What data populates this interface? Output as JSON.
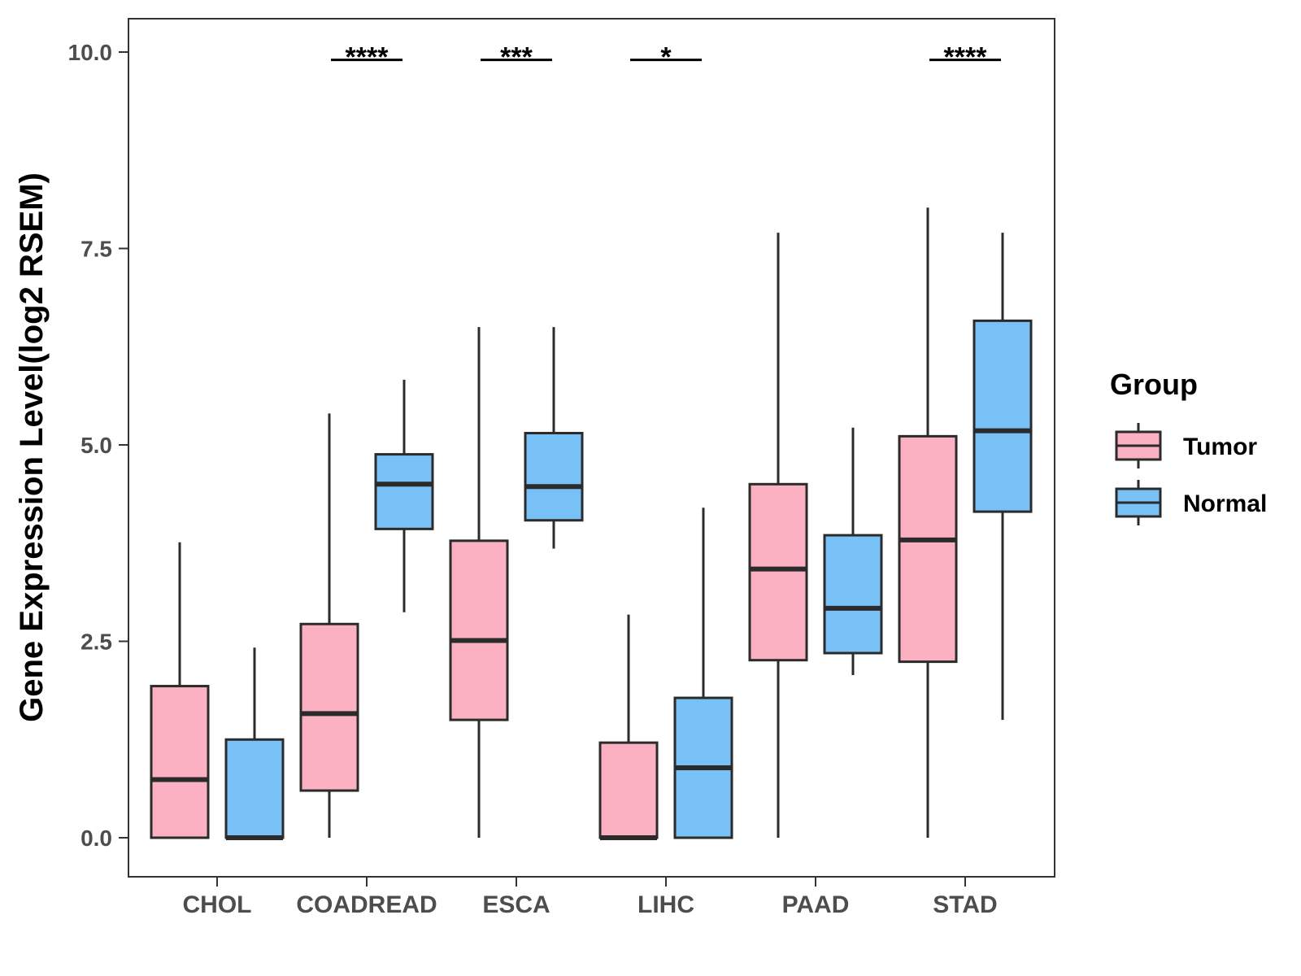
{
  "chart_data": {
    "type": "boxplot",
    "ylabel": "Gene Expression Level(log2 RSEM)",
    "xlabel": "",
    "ylim": [
      -0.5,
      10.4
    ],
    "y_ticks": [
      0.0,
      2.5,
      5.0,
      7.5,
      10.0
    ],
    "y_tick_labels": [
      "0.0",
      "2.5",
      "5.0",
      "7.5",
      "10.0"
    ],
    "grid": false,
    "categories": [
      "CHOL",
      "COADREAD",
      "ESCA",
      "LIHC",
      "PAAD",
      "STAD"
    ],
    "legend": {
      "title": "Group",
      "position": "right",
      "entries": [
        {
          "name": "Tumor",
          "color": "#FBB1C2"
        },
        {
          "name": "Normal",
          "color": "#77C1F7"
        }
      ]
    },
    "series": [
      {
        "name": "Tumor",
        "color": "#FBB1C2",
        "boxes": [
          {
            "category": "CHOL",
            "min": 0.0,
            "q1": 0.0,
            "median": 0.74,
            "q3": 1.93,
            "max": 3.76
          },
          {
            "category": "COADREAD",
            "min": 0.0,
            "q1": 0.6,
            "median": 1.58,
            "q3": 2.72,
            "max": 5.4
          },
          {
            "category": "ESCA",
            "min": 0.0,
            "q1": 1.5,
            "median": 2.51,
            "q3": 3.78,
            "max": 6.5
          },
          {
            "category": "LIHC",
            "min": 0.0,
            "q1": 0.0,
            "median": 0.0,
            "q3": 1.21,
            "max": 2.84
          },
          {
            "category": "PAAD",
            "min": 0.0,
            "q1": 2.26,
            "median": 3.42,
            "q3": 4.5,
            "max": 7.7
          },
          {
            "category": "STAD",
            "min": 0.0,
            "q1": 2.24,
            "median": 3.79,
            "q3": 5.11,
            "max": 8.02
          }
        ]
      },
      {
        "name": "Normal",
        "color": "#77C1F7",
        "boxes": [
          {
            "category": "CHOL",
            "min": 0.0,
            "q1": 0.0,
            "median": 0.0,
            "q3": 1.25,
            "max": 2.42
          },
          {
            "category": "COADREAD",
            "min": 2.87,
            "q1": 3.93,
            "median": 4.5,
            "q3": 4.88,
            "max": 5.83
          },
          {
            "category": "ESCA",
            "min": 3.68,
            "q1": 4.04,
            "median": 4.47,
            "q3": 5.15,
            "max": 6.5
          },
          {
            "category": "LIHC",
            "min": 0.0,
            "q1": 0.0,
            "median": 0.89,
            "q3": 1.78,
            "max": 4.2
          },
          {
            "category": "PAAD",
            "min": 2.07,
            "q1": 2.35,
            "median": 2.92,
            "q3": 3.85,
            "max": 5.22
          },
          {
            "category": "STAD",
            "min": 1.5,
            "q1": 4.15,
            "median": 5.18,
            "q3": 6.58,
            "max": 7.7
          }
        ]
      }
    ],
    "significance": [
      {
        "category": "CHOL",
        "label": ""
      },
      {
        "category": "COADREAD",
        "label": "****"
      },
      {
        "category": "ESCA",
        "label": "***"
      },
      {
        "category": "LIHC",
        "label": "*"
      },
      {
        "category": "PAAD",
        "label": ""
      },
      {
        "category": "STAD",
        "label": "****"
      }
    ],
    "significance_y": 9.9
  }
}
